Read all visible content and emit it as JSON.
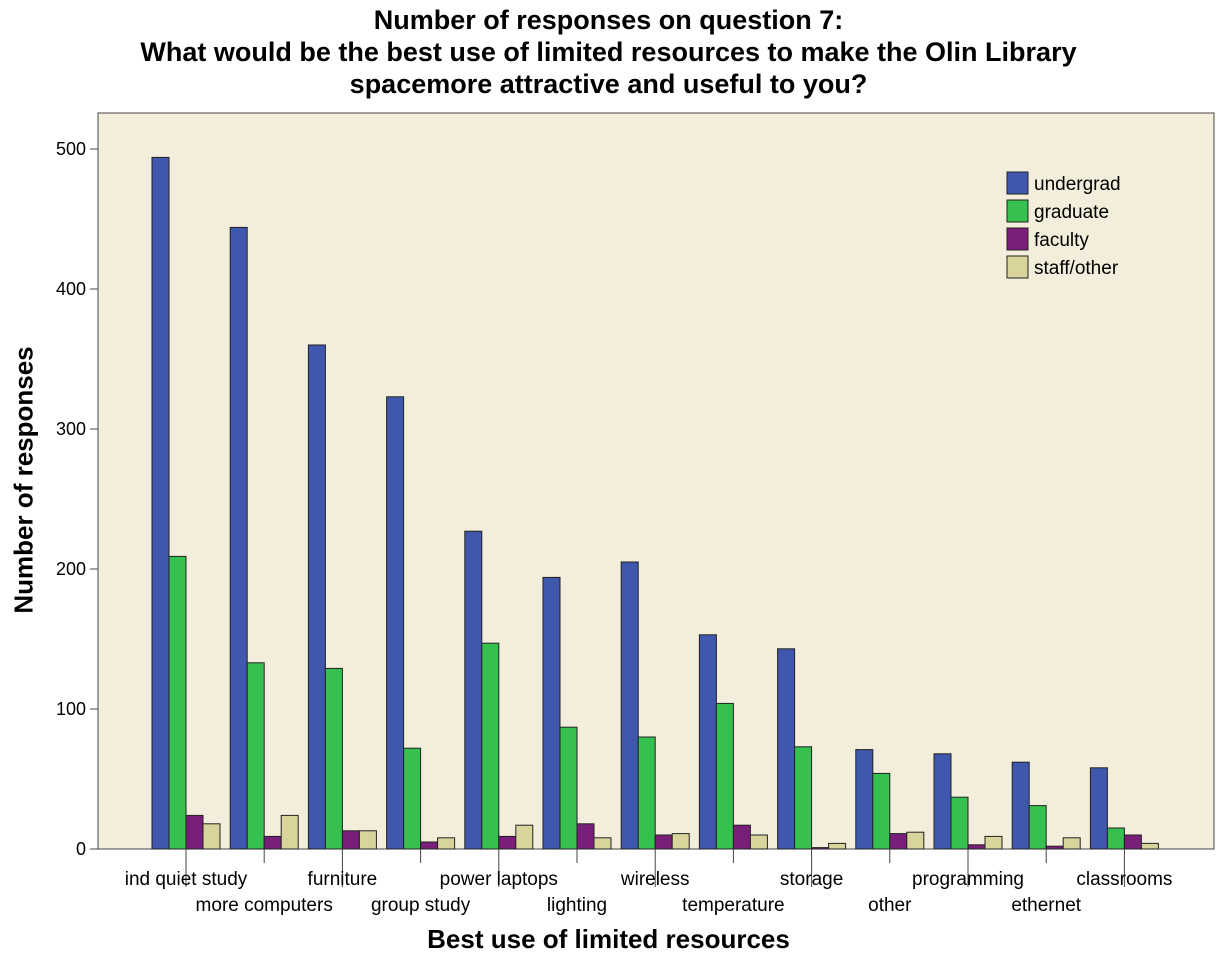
{
  "chart_data": {
    "type": "bar",
    "title_lines": [
      "Number of responses on question 7:",
      "What would be the best use of limited resources to make the Olin Library",
      "spacemore attractive and useful to you?"
    ],
    "xlabel": "Best use of limited resources",
    "ylabel": "Number of responses",
    "ylim": [
      0,
      500
    ],
    "yticks": [
      0,
      100,
      200,
      300,
      400,
      500
    ],
    "categories": [
      "ind quiet study",
      "more computers",
      "furniture",
      "group study",
      "power laptops",
      "lighting",
      "wireless",
      "temperature",
      "storage",
      "other",
      "programming",
      "ethernet",
      "classrooms"
    ],
    "series": [
      {
        "name": "undergrad",
        "color": "#3f58ad",
        "values": [
          494,
          444,
          360,
          323,
          227,
          194,
          205,
          153,
          143,
          71,
          68,
          62,
          58
        ]
      },
      {
        "name": "graduate",
        "color": "#35c050",
        "values": [
          209,
          133,
          129,
          72,
          147,
          87,
          80,
          104,
          73,
          54,
          37,
          31,
          15
        ]
      },
      {
        "name": "faculty",
        "color": "#791f79",
        "values": [
          24,
          9,
          13,
          5,
          9,
          18,
          10,
          17,
          1,
          11,
          3,
          2,
          10
        ]
      },
      {
        "name": "staff/other",
        "color": "#d9d39c",
        "values": [
          18,
          24,
          13,
          8,
          17,
          8,
          11,
          10,
          4,
          12,
          9,
          8,
          4
        ]
      }
    ],
    "legend_position": "top-right",
    "plot_background": "#f3eedb",
    "grid": false
  }
}
